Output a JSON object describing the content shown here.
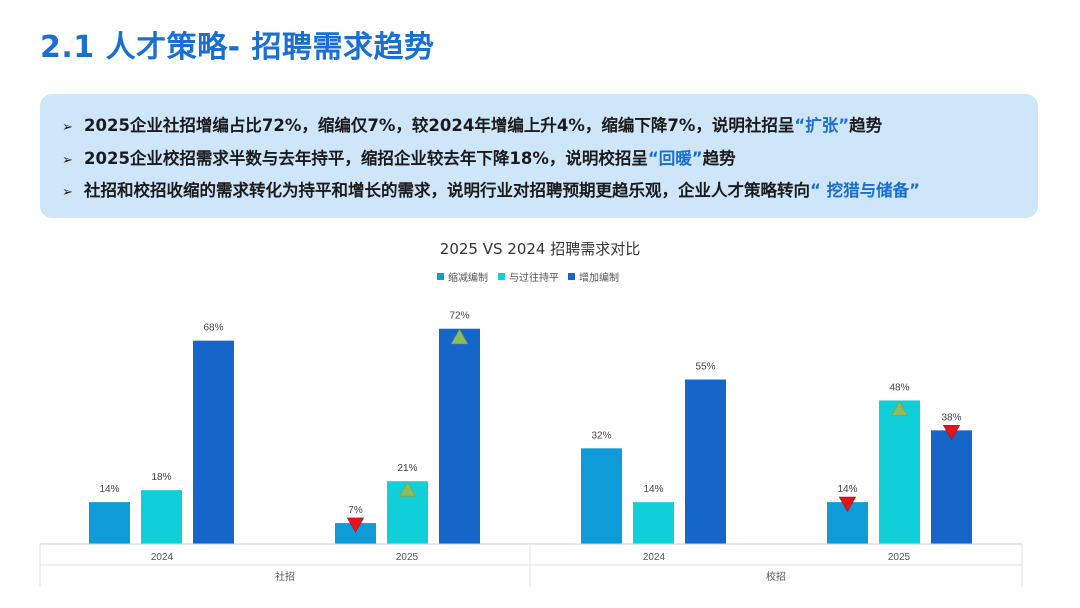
{
  "slide": {
    "title": "2.1 人才策略- 招聘需求趋势"
  },
  "summary": {
    "arrow_icon": "triangle-arrow-bullet",
    "bullets": [
      {
        "text": "2025企业社招增编占比72%，缩编仅7%，较2024年增编上升4%，缩编下降7%，说明社招呈",
        "highlight": "“扩张”",
        "tail": "趋势"
      },
      {
        "text": "2025企业校招需求半数与去年持平，缩招企业较去年下降18%，说明校招呈",
        "highlight": "“回暖”",
        "tail": "趋势"
      },
      {
        "text": "社招和校招收缩的需求转化为持平和增长的需求，说明行业对招聘预期更趋乐观，企业人才策略转向",
        "highlight": "“ 挖猎与储备”",
        "tail": ""
      }
    ]
  },
  "chart_data": {
    "type": "bar",
    "title": "2025 VS 2024 招聘需求对比",
    "legend_position": "top-center",
    "grid": false,
    "ylim": [
      0,
      75
    ],
    "groups": [
      {
        "label": "社招",
        "categories": [
          "2024",
          "2025"
        ]
      },
      {
        "label": "校招",
        "categories": [
          "2024",
          "2025"
        ]
      }
    ],
    "categories": [
      "社招 2024",
      "社招 2025",
      "校招 2024",
      "校招 2025"
    ],
    "series": [
      {
        "name": "缩减编制",
        "color": "#0f9ad8",
        "values": [
          14,
          7,
          32,
          14
        ],
        "value_labels": [
          "14%",
          "7%",
          "32%",
          "14%"
        ]
      },
      {
        "name": "与过往持平",
        "color": "#10cfd8",
        "values": [
          18,
          21,
          14,
          48
        ],
        "value_labels": [
          "18%",
          "21%",
          "14%",
          "48%"
        ]
      },
      {
        "name": "增加编制",
        "color": "#1566c8",
        "values": [
          68,
          72,
          55,
          38
        ],
        "value_labels": [
          "68%",
          "72%",
          "55%",
          "38%"
        ]
      }
    ],
    "markers": [
      {
        "category": 1,
        "series": 0,
        "direction": "down",
        "icon": "red-down-triangle-icon",
        "color": "#e8141b"
      },
      {
        "category": 1,
        "series": 1,
        "direction": "up",
        "icon": "green-up-triangle-icon",
        "color": "#8fbb5a"
      },
      {
        "category": 1,
        "series": 2,
        "direction": "up",
        "icon": "green-up-triangle-icon",
        "color": "#8fbb5a"
      },
      {
        "category": 3,
        "series": 0,
        "direction": "down",
        "icon": "red-down-triangle-icon",
        "color": "#e8141b"
      },
      {
        "category": 3,
        "series": 1,
        "direction": "up",
        "icon": "green-up-triangle-icon",
        "color": "#8fbb5a"
      },
      {
        "category": 3,
        "series": 2,
        "direction": "down",
        "icon": "red-down-triangle-icon",
        "color": "#e8141b"
      }
    ]
  }
}
